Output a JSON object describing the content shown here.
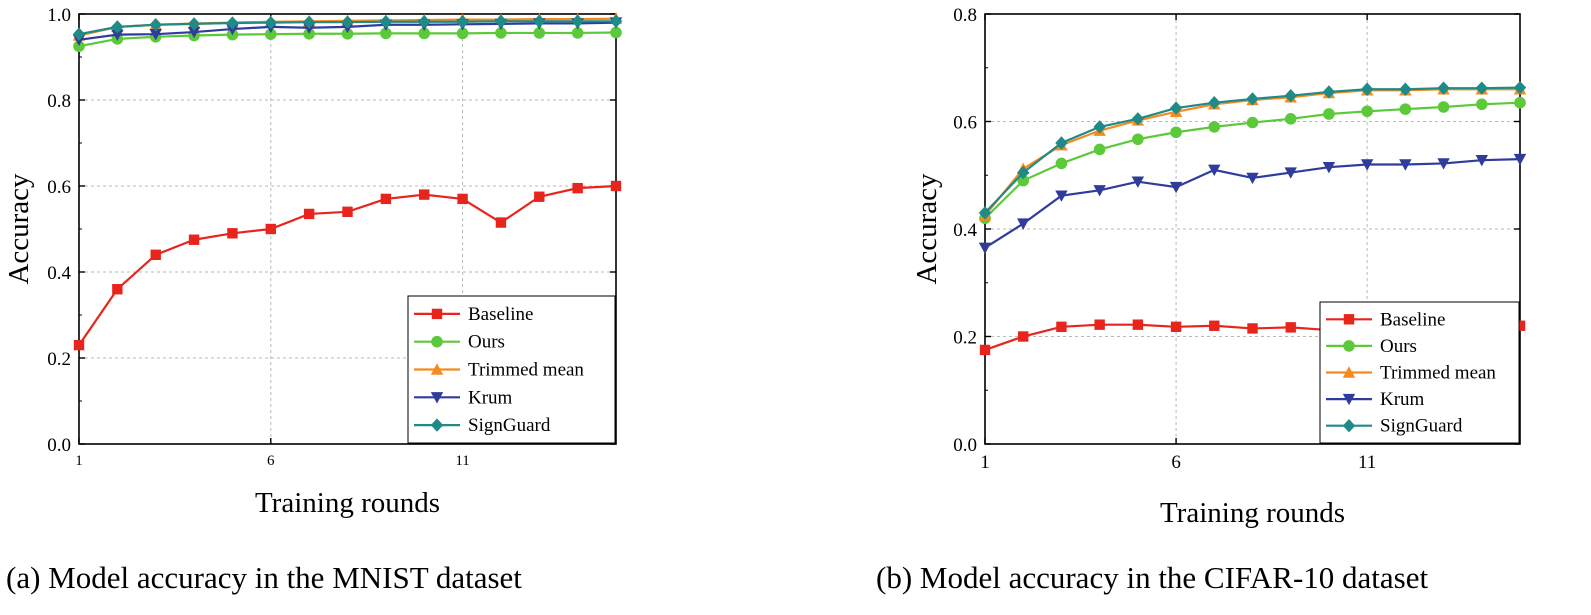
{
  "colors": {
    "Baseline": "#e8251d",
    "Ours": "#5cc93a",
    "Trimmed mean": "#f58a1f",
    "Krum": "#2f3c9c",
    "SignGuard": "#1f8a86",
    "grid": "#b9b9b9"
  },
  "markers": {
    "Baseline": "square",
    "Ours": "circle",
    "Trimmed mean": "triangle-up",
    "Krum": "triangle-down",
    "SignGuard": "diamond"
  },
  "captions": {
    "a": "(a) Model accuracy in the MNIST dataset",
    "b": "(b) Model accuracy in the CIFAR-10 dataset"
  },
  "chart_data": [
    {
      "type": "line",
      "title": "",
      "xlabel": "Training rounds",
      "ylabel": "Accuracy",
      "xlim": [
        1,
        15
      ],
      "ylim": [
        0.0,
        1.0
      ],
      "xticks": [
        1,
        6,
        11
      ],
      "yticks": [
        0.0,
        0.2,
        0.4,
        0.6,
        0.8,
        1.0
      ],
      "ytick_labels": [
        "0.0",
        "0.2",
        "0.4",
        "0.6",
        "0.8",
        "1.0"
      ],
      "grid": true,
      "legend_position": "bottom-right",
      "x": [
        1,
        2,
        3,
        4,
        5,
        6,
        7,
        8,
        9,
        10,
        11,
        12,
        13,
        14,
        15
      ],
      "series": [
        {
          "name": "Baseline",
          "values": [
            0.23,
            0.36,
            0.44,
            0.475,
            0.49,
            0.5,
            0.535,
            0.54,
            0.57,
            0.58,
            0.57,
            0.515,
            0.575,
            0.595,
            0.6
          ]
        },
        {
          "name": "Ours",
          "values": [
            0.925,
            0.942,
            0.947,
            0.95,
            0.952,
            0.953,
            0.954,
            0.954,
            0.955,
            0.955,
            0.955,
            0.956,
            0.956,
            0.956,
            0.957
          ]
        },
        {
          "name": "Trimmed mean",
          "values": [
            0.95,
            0.97,
            0.975,
            0.978,
            0.98,
            0.982,
            0.983,
            0.984,
            0.985,
            0.986,
            0.987,
            0.987,
            0.988,
            0.988,
            0.989
          ]
        },
        {
          "name": "Krum",
          "values": [
            0.94,
            0.952,
            0.953,
            0.958,
            0.965,
            0.97,
            0.968,
            0.97,
            0.975,
            0.975,
            0.976,
            0.977,
            0.978,
            0.978,
            0.98
          ]
        },
        {
          "name": "SignGuard",
          "values": [
            0.953,
            0.97,
            0.975,
            0.977,
            0.979,
            0.98,
            0.981,
            0.981,
            0.982,
            0.982,
            0.982,
            0.983,
            0.983,
            0.983,
            0.983
          ]
        }
      ]
    },
    {
      "type": "line",
      "title": "",
      "xlabel": "Training rounds",
      "ylabel": "Accuracy",
      "xlim": [
        1,
        15
      ],
      "ylim": [
        0.0,
        0.8
      ],
      "xticks": [
        1,
        6,
        11
      ],
      "yticks": [
        0.0,
        0.2,
        0.4,
        0.6,
        0.8
      ],
      "ytick_labels": [
        "0.0",
        "0.2",
        "0.4",
        "0.6",
        "0.8"
      ],
      "grid": true,
      "legend_position": "bottom-right",
      "x": [
        1,
        2,
        3,
        4,
        5,
        6,
        7,
        8,
        9,
        10,
        11,
        12,
        13,
        14,
        15
      ],
      "series": [
        {
          "name": "Baseline",
          "values": [
            0.175,
            0.2,
            0.218,
            0.222,
            0.222,
            0.218,
            0.22,
            0.215,
            0.217,
            0.212,
            0.218,
            0.212,
            0.222,
            0.22,
            0.22
          ]
        },
        {
          "name": "Ours",
          "values": [
            0.42,
            0.49,
            0.522,
            0.548,
            0.567,
            0.58,
            0.59,
            0.598,
            0.605,
            0.614,
            0.619,
            0.623,
            0.627,
            0.632,
            0.635
          ]
        },
        {
          "name": "Trimmed mean",
          "values": [
            0.425,
            0.512,
            0.556,
            0.583,
            0.602,
            0.618,
            0.632,
            0.64,
            0.645,
            0.653,
            0.658,
            0.658,
            0.66,
            0.66,
            0.66
          ]
        },
        {
          "name": "Krum",
          "values": [
            0.365,
            0.41,
            0.462,
            0.472,
            0.488,
            0.478,
            0.51,
            0.495,
            0.505,
            0.515,
            0.52,
            0.52,
            0.522,
            0.528,
            0.53
          ]
        },
        {
          "name": "SignGuard",
          "values": [
            0.43,
            0.505,
            0.56,
            0.59,
            0.605,
            0.625,
            0.635,
            0.642,
            0.648,
            0.655,
            0.66,
            0.66,
            0.662,
            0.662,
            0.663
          ]
        }
      ]
    }
  ]
}
